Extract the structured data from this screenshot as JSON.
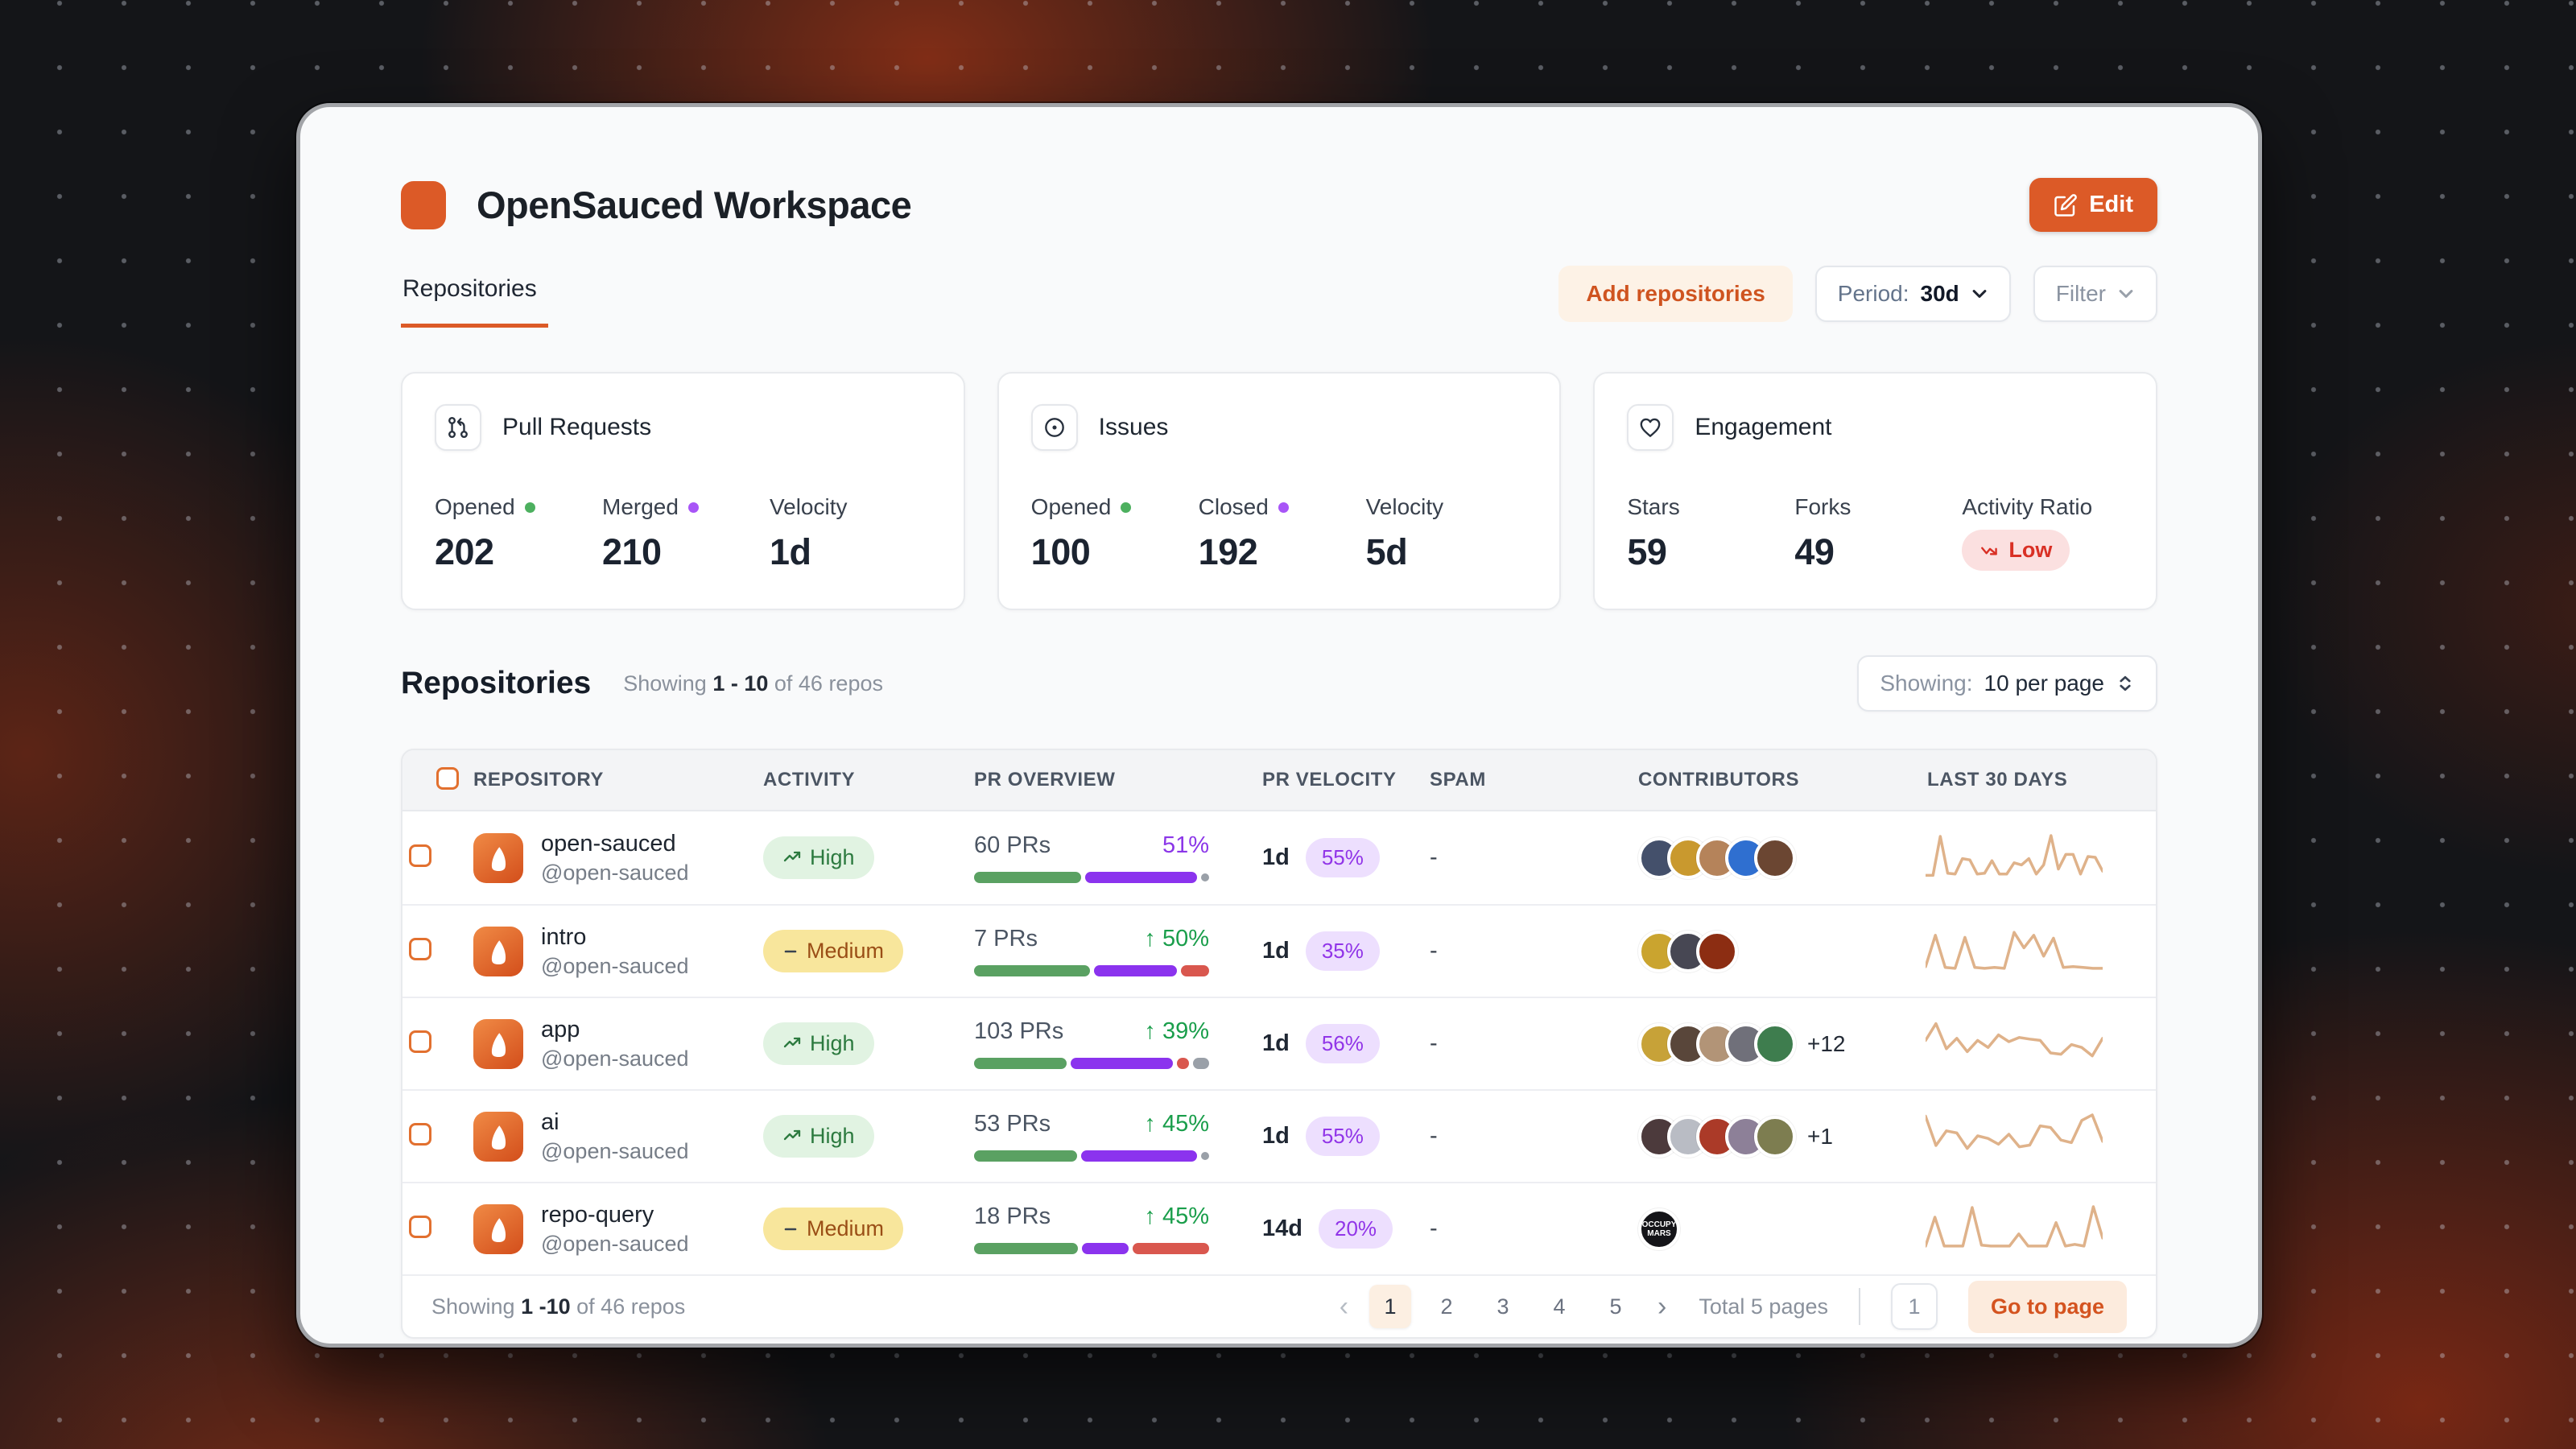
{
  "colors": {
    "brand_orange": "#dc5a27",
    "green_dot": "#4db05f",
    "purple_dot": "#a855f7",
    "bar_green": "#5aa162",
    "bar_purple": "#8b33ee",
    "bar_red": "#d9574e",
    "bar_gray": "#9aa0a8",
    "pct_green": "#1a9e4b",
    "pct_purple": "#8b36e8",
    "pill_purple_bg": "#eddffe",
    "pill_purple_text": "#9135e8",
    "high_bg": "#e1f3e2",
    "high_text": "#2c7a3f",
    "medium_bg": "#f8e69c",
    "medium_text": "#9a4e16",
    "low_bg": "#fbe0e0",
    "low_text": "#d93025",
    "spark": "#dfb28a"
  },
  "header": {
    "title": "OpenSauced Workspace",
    "edit_label": "Edit"
  },
  "tabs": {
    "repositories": "Repositories"
  },
  "toolbar": {
    "add_repositories": "Add repositories",
    "period_label": "Period:",
    "period_value": "30d",
    "filter_label": "Filter"
  },
  "stat_cards": [
    {
      "title": "Pull Requests",
      "stats": [
        {
          "label": "Opened",
          "value": "202",
          "dot": "green"
        },
        {
          "label": "Merged",
          "value": "210",
          "dot": "purple"
        },
        {
          "label": "Velocity",
          "value": "1d"
        }
      ]
    },
    {
      "title": "Issues",
      "stats": [
        {
          "label": "Opened",
          "value": "100",
          "dot": "green"
        },
        {
          "label": "Closed",
          "value": "192",
          "dot": "purple"
        },
        {
          "label": "Velocity",
          "value": "5d"
        }
      ]
    },
    {
      "title": "Engagement",
      "stats": [
        {
          "label": "Stars",
          "value": "59"
        },
        {
          "label": "Forks",
          "value": "49"
        },
        {
          "label": "Activity Ratio",
          "badge": "Low"
        }
      ]
    }
  ],
  "repos_section": {
    "heading": "Repositories",
    "showing_prefix": "Showing",
    "showing_range": "1 - 10",
    "showing_suffix": "of 46 repos",
    "per_page_label": "Showing:",
    "per_page_value": "10 per page"
  },
  "table": {
    "columns": [
      "REPOSITORY",
      "ACTIVITY",
      "PR OVERVIEW",
      "PR VELOCITY",
      "SPAM",
      "CONTRIBUTORS",
      "LAST 30 DAYS"
    ],
    "rows": [
      {
        "name": "open-sauced",
        "handle": "@open-sauced",
        "activity": "High",
        "activity_level": "high",
        "prs": "60 PRs",
        "change": "51%",
        "change_style": "purple",
        "change_arrow": false,
        "bar": [
          [
            "green",
            46
          ],
          [
            "purple",
            48
          ],
          [
            "dot",
            0
          ]
        ],
        "velocity": "1d",
        "velocity_pct": "55%",
        "spam": "-",
        "avatars": [
          "#44506b",
          "#c9992e",
          "#b5835a",
          "#2f6fd0",
          "#6b4632"
        ],
        "extra": "",
        "avatar_label": "",
        "spark": [
          5,
          5,
          98,
          10,
          8,
          45,
          42,
          8,
          10,
          40,
          8,
          8,
          35,
          30,
          45,
          8,
          30,
          100,
          20,
          55,
          55,
          8,
          50,
          48,
          15
        ]
      },
      {
        "name": "intro",
        "handle": "@open-sauced",
        "activity": "Medium",
        "activity_level": "medium",
        "prs": "7 PRs",
        "change": "50%",
        "change_style": "green",
        "change_arrow": true,
        "bar": [
          [
            "green",
            50
          ],
          [
            "purple",
            36
          ],
          [
            "red",
            12
          ]
        ],
        "velocity": "1d",
        "velocity_pct": "35%",
        "spam": "-",
        "avatars": [
          "#caa42f",
          "#474753",
          "#8c2d12"
        ],
        "extra": "",
        "avatar_label": "",
        "spark": [
          10,
          85,
          8,
          6,
          80,
          8,
          6,
          8,
          6,
          92,
          55,
          85,
          35,
          78,
          8,
          10,
          8,
          6,
          6
        ]
      },
      {
        "name": "app",
        "handle": "@open-sauced",
        "activity": "High",
        "activity_level": "high",
        "prs": "103 PRs",
        "change": "39%",
        "change_style": "green",
        "change_arrow": true,
        "bar": [
          [
            "green",
            40
          ],
          [
            "purple",
            44
          ],
          [
            "red",
            5
          ],
          [
            "gray",
            7
          ]
        ],
        "velocity": "1d",
        "velocity_pct": "56%",
        "spam": "-",
        "avatars": [
          "#c7a238",
          "#59463a",
          "#b29477",
          "#70707a",
          "#3e7d4e"
        ],
        "extra": "+12",
        "avatar_label": "",
        "spark": [
          55,
          95,
          35,
          60,
          28,
          55,
          38,
          68,
          52,
          62,
          58,
          55,
          25,
          22,
          45,
          38,
          18,
          60
        ]
      },
      {
        "name": "ai",
        "handle": "@open-sauced",
        "activity": "High",
        "activity_level": "high",
        "prs": "53 PRs",
        "change": "45%",
        "change_style": "green",
        "change_arrow": true,
        "bar": [
          [
            "green",
            45
          ],
          [
            "purple",
            51
          ],
          [
            "dot",
            0
          ]
        ],
        "velocity": "1d",
        "velocity_pct": "55%",
        "spam": "-",
        "avatars": [
          "#4c3a3c",
          "#b9bcc4",
          "#ab3a28",
          "#8d8098",
          "#7d7d50"
        ],
        "extra": "+1",
        "avatar_label": "",
        "spark": [
          95,
          25,
          60,
          55,
          18,
          48,
          42,
          28,
          52,
          22,
          26,
          72,
          68,
          38,
          32,
          85,
          98,
          35
        ]
      },
      {
        "name": "repo-query",
        "handle": "@open-sauced",
        "activity": "Medium",
        "activity_level": "medium",
        "prs": "18 PRs",
        "change": "45%",
        "change_style": "green",
        "change_arrow": true,
        "bar": [
          [
            "green",
            45
          ],
          [
            "purple",
            20
          ],
          [
            "red",
            33
          ]
        ],
        "velocity": "14d",
        "velocity_pct": "20%",
        "spam": "-",
        "avatars": [
          "#141418"
        ],
        "extra": "",
        "avatar_label": "OCCUPY MARS",
        "spark": [
          6,
          75,
          6,
          6,
          6,
          98,
          8,
          6,
          6,
          6,
          35,
          6,
          6,
          6,
          62,
          6,
          10,
          6,
          100,
          25
        ]
      }
    ]
  },
  "footer": {
    "showing_prefix": "Showing",
    "showing_range": "1 -10",
    "showing_suffix": "of 46 repos",
    "pages": [
      "1",
      "2",
      "3",
      "4",
      "5"
    ],
    "active_page": "1",
    "total_label": "Total 5 pages",
    "page_input": "1",
    "go_to_page": "Go to page"
  }
}
